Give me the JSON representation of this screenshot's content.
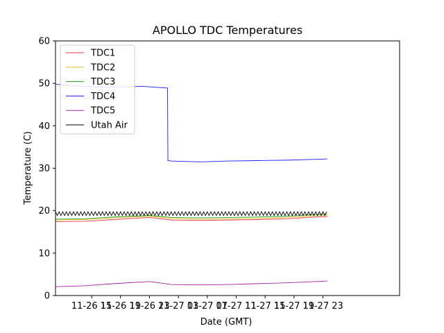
{
  "chart_data": {
    "type": "line",
    "title": "APOLLO TDC Temperatures",
    "xlabel": "Date (GMT)",
    "ylabel": "Temperature (C)",
    "xlim": [
      0,
      47.6
    ],
    "ylim": [
      0,
      60
    ],
    "x_ticks": [
      {
        "x": 5,
        "label": "11-26 15"
      },
      {
        "x": 9,
        "label": "11-26 19"
      },
      {
        "x": 13,
        "label": "11-26 23"
      },
      {
        "x": 17,
        "label": "11-27 03"
      },
      {
        "x": 21,
        "label": "11-27 07"
      },
      {
        "x": 25,
        "label": "11-27 11"
      },
      {
        "x": 29,
        "label": "11-27 15"
      },
      {
        "x": 33,
        "label": "11-27 19"
      },
      {
        "x": 37,
        "label": "11-27 23"
      }
    ],
    "y_ticks": [
      0,
      10,
      20,
      30,
      40,
      50,
      60
    ],
    "grid": false,
    "legend_position": "top-left",
    "x_unit": "hours since 11-26 10:00 GMT",
    "series": [
      {
        "name": "TDC1",
        "color": "#e8334a",
        "x": [
          0,
          4,
          8,
          12,
          13,
          16,
          20,
          24,
          28,
          32,
          36,
          37.6
        ],
        "y": [
          17.4,
          17.5,
          17.9,
          18.3,
          18.4,
          17.8,
          17.7,
          17.8,
          17.9,
          18.1,
          18.5,
          18.6
        ]
      },
      {
        "name": "TDC2",
        "color": "#e0c020",
        "x": [
          0,
          4,
          8,
          12,
          13,
          16,
          20,
          24,
          28,
          32,
          36,
          37.6
        ],
        "y": [
          17.8,
          17.9,
          18.3,
          18.6,
          18.7,
          18.2,
          18.0,
          18.1,
          18.2,
          18.4,
          18.8,
          18.9
        ]
      },
      {
        "name": "TDC3",
        "color": "#1f9e1f",
        "x": [
          0,
          4,
          8,
          12,
          13,
          16,
          20,
          24,
          28,
          32,
          36,
          37.6
        ],
        "y": [
          18.0,
          18.1,
          18.5,
          18.8,
          18.9,
          18.4,
          18.3,
          18.4,
          18.5,
          18.7,
          19.1,
          19.2
        ]
      },
      {
        "name": "TDC4",
        "color": "#1a1aff",
        "x": [
          0,
          3,
          6,
          10,
          12,
          15.5,
          15.55,
          16,
          20,
          24,
          28,
          32,
          36,
          37.6
        ],
        "y": [
          49.8,
          49.4,
          49.1,
          49.2,
          49.3,
          48.9,
          31.8,
          31.7,
          31.5,
          31.7,
          31.8,
          31.9,
          32.1,
          32.2
        ]
      },
      {
        "name": "TDC5",
        "color": "#a020a0",
        "x": [
          0,
          4,
          8,
          12,
          13,
          16,
          20,
          24,
          28,
          32,
          36,
          37.6
        ],
        "y": [
          2.1,
          2.3,
          2.8,
          3.2,
          3.3,
          2.6,
          2.5,
          2.6,
          2.8,
          3.0,
          3.3,
          3.4
        ]
      },
      {
        "name": "Utah Air",
        "color": "#000000",
        "style": "oscillation",
        "baseline": 19.3,
        "amplitude": 0.45,
        "period_hours": 0.5,
        "x_start": 0,
        "x_end": 37.6
      }
    ]
  }
}
